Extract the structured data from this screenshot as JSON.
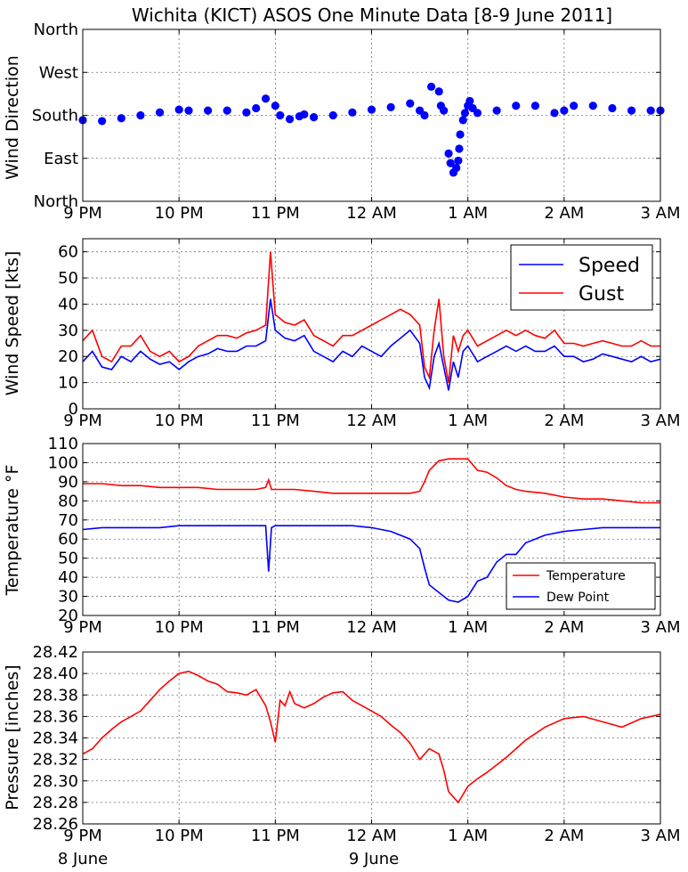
{
  "title": "Wichita (KICT) ASOS One Minute Data [8-9 June 2011]",
  "time_ticks": [
    "9 PM",
    "10 PM",
    "11 PM",
    "12 AM",
    "1 AM",
    "2 AM",
    "3 AM"
  ],
  "date_labels": {
    "first": "8 June",
    "second": "9 June"
  },
  "colors": {
    "speed": "#0000ff",
    "gust": "#ff0000",
    "temperature": "#ff0000",
    "dewpoint": "#0000ff",
    "direction": "#0000ff",
    "pressure": "#ff0000"
  },
  "chart_data": [
    {
      "type": "scatter",
      "ylabel": "Wind Direction",
      "x_unit": "hours after 9 PM (8 June 2011)",
      "xlim": [
        0,
        6
      ],
      "ylim": [
        0,
        360
      ],
      "y_tick_values": [
        0,
        90,
        180,
        270,
        360
      ],
      "y_tick_labels": [
        "North",
        "East",
        "South",
        "West",
        "North"
      ],
      "grid": true,
      "series": [
        {
          "values_x": [
            0.0,
            0.2,
            0.4,
            0.6,
            0.8,
            1.0,
            1.1,
            1.3,
            1.5,
            1.7,
            1.8,
            1.9,
            2.0,
            2.05,
            2.15,
            2.25,
            2.3,
            2.4,
            2.6,
            2.8,
            3.0,
            3.2,
            3.4,
            3.5,
            3.55,
            3.62,
            3.7,
            3.72,
            3.75,
            3.8,
            3.82,
            3.85,
            3.88,
            3.9,
            3.91,
            3.92,
            3.95,
            3.97,
            4.0,
            4.02,
            4.05,
            4.1,
            4.3,
            4.5,
            4.7,
            4.9,
            5.0,
            5.1,
            5.3,
            5.5,
            5.7,
            5.9,
            6.0
          ],
          "values": [
            170,
            168,
            174,
            180,
            186,
            192,
            190,
            190,
            190,
            186,
            195,
            215,
            200,
            180,
            172,
            178,
            182,
            176,
            180,
            186,
            192,
            197,
            205,
            190,
            180,
            240,
            230,
            200,
            190,
            100,
            80,
            60,
            70,
            85,
            110,
            140,
            170,
            185,
            200,
            210,
            195,
            185,
            190,
            200,
            200,
            185,
            190,
            200,
            200,
            195,
            190,
            190,
            190
          ]
        }
      ]
    },
    {
      "type": "line",
      "ylabel": "Wind Speed [kts]",
      "x_unit": "hours after 9 PM (8 June 2011)",
      "xlim": [
        0,
        6
      ],
      "ylim": [
        0,
        65
      ],
      "y_ticks": [
        0,
        10,
        20,
        30,
        40,
        50,
        60
      ],
      "grid": true,
      "legend": "top-right",
      "x": [
        0.0,
        0.1,
        0.2,
        0.3,
        0.4,
        0.5,
        0.6,
        0.7,
        0.8,
        0.9,
        1.0,
        1.1,
        1.2,
        1.3,
        1.4,
        1.5,
        1.6,
        1.7,
        1.8,
        1.9,
        1.95,
        2.0,
        2.1,
        2.2,
        2.3,
        2.4,
        2.5,
        2.6,
        2.7,
        2.8,
        2.9,
        3.0,
        3.1,
        3.2,
        3.3,
        3.4,
        3.5,
        3.55,
        3.6,
        3.65,
        3.7,
        3.75,
        3.8,
        3.85,
        3.9,
        3.95,
        4.0,
        4.1,
        4.2,
        4.3,
        4.4,
        4.5,
        4.6,
        4.7,
        4.8,
        4.9,
        5.0,
        5.1,
        5.2,
        5.3,
        5.4,
        5.5,
        5.6,
        5.7,
        5.8,
        5.9,
        6.0
      ],
      "series": [
        {
          "name": "Speed",
          "values": [
            18,
            22,
            16,
            15,
            20,
            18,
            22,
            19,
            17,
            18,
            15,
            18,
            20,
            21,
            23,
            22,
            22,
            24,
            24,
            26,
            42,
            30,
            27,
            26,
            28,
            22,
            20,
            18,
            22,
            20,
            24,
            22,
            20,
            24,
            27,
            30,
            25,
            12,
            8,
            20,
            25,
            16,
            7,
            18,
            12,
            22,
            24,
            18,
            20,
            22,
            24,
            22,
            24,
            22,
            22,
            24,
            20,
            20,
            18,
            19,
            21,
            20,
            19,
            18,
            20,
            18,
            19
          ]
        },
        {
          "name": "Gust",
          "values": [
            26,
            30,
            20,
            18,
            24,
            24,
            28,
            22,
            20,
            22,
            18,
            20,
            24,
            26,
            28,
            28,
            27,
            29,
            30,
            32,
            60,
            36,
            33,
            32,
            34,
            28,
            26,
            24,
            28,
            28,
            30,
            32,
            34,
            36,
            38,
            36,
            32,
            16,
            12,
            30,
            42,
            20,
            10,
            28,
            22,
            28,
            30,
            24,
            26,
            28,
            30,
            28,
            30,
            28,
            27,
            30,
            25,
            25,
            24,
            25,
            26,
            25,
            24,
            24,
            26,
            24,
            24
          ]
        }
      ]
    },
    {
      "type": "line",
      "ylabel": "Temperature °F",
      "x_unit": "hours after 9 PM (8 June 2011)",
      "xlim": [
        0,
        6
      ],
      "ylim": [
        20,
        110
      ],
      "y_ticks": [
        20,
        30,
        40,
        50,
        60,
        70,
        80,
        90,
        100,
        110
      ],
      "grid": true,
      "legend": "bottom-right",
      "x": [
        0.0,
        0.2,
        0.4,
        0.6,
        0.8,
        1.0,
        1.2,
        1.4,
        1.6,
        1.8,
        1.9,
        1.93,
        1.96,
        2.0,
        2.2,
        2.4,
        2.6,
        2.8,
        3.0,
        3.2,
        3.4,
        3.5,
        3.55,
        3.6,
        3.7,
        3.8,
        3.9,
        4.0,
        4.1,
        4.2,
        4.3,
        4.4,
        4.5,
        4.6,
        4.8,
        5.0,
        5.2,
        5.4,
        5.6,
        5.8,
        6.0
      ],
      "series": [
        {
          "name": "Temperature",
          "values": [
            89,
            89,
            88,
            88,
            87,
            87,
            87,
            86,
            86,
            86,
            87,
            91,
            86,
            86,
            86,
            85,
            84,
            84,
            84,
            84,
            84,
            85,
            90,
            96,
            101,
            102,
            102,
            102,
            96,
            95,
            92,
            88,
            86,
            85,
            84,
            82,
            81,
            81,
            80,
            79,
            79
          ]
        },
        {
          "name": "Dew Point",
          "values": [
            65,
            66,
            66,
            66,
            66,
            67,
            67,
            67,
            67,
            67,
            67,
            43,
            66,
            67,
            67,
            67,
            67,
            67,
            66,
            64,
            60,
            55,
            45,
            36,
            32,
            28,
            27,
            30,
            38,
            40,
            48,
            52,
            52,
            58,
            62,
            64,
            65,
            66,
            66,
            66,
            66
          ]
        }
      ]
    },
    {
      "type": "line",
      "ylabel": "Pressure [inches]",
      "x_unit": "hours after 9 PM (8 June 2011)",
      "xlim": [
        0,
        6
      ],
      "ylim": [
        28.26,
        28.42
      ],
      "y_ticks": [
        28.26,
        28.28,
        28.3,
        28.32,
        28.34,
        28.36,
        28.38,
        28.4,
        28.42
      ],
      "grid": true,
      "x": [
        0.0,
        0.1,
        0.2,
        0.3,
        0.4,
        0.5,
        0.6,
        0.7,
        0.8,
        0.9,
        1.0,
        1.1,
        1.2,
        1.3,
        1.4,
        1.5,
        1.6,
        1.7,
        1.8,
        1.9,
        1.95,
        2.0,
        2.05,
        2.1,
        2.15,
        2.2,
        2.3,
        2.4,
        2.5,
        2.6,
        2.7,
        2.8,
        2.9,
        3.0,
        3.1,
        3.2,
        3.3,
        3.4,
        3.5,
        3.6,
        3.7,
        3.75,
        3.8,
        3.85,
        3.9,
        4.0,
        4.1,
        4.2,
        4.3,
        4.4,
        4.5,
        4.6,
        4.8,
        5.0,
        5.2,
        5.4,
        5.6,
        5.8,
        6.0
      ],
      "series": [
        {
          "name": "Pressure",
          "values": [
            28.325,
            28.33,
            28.34,
            28.348,
            28.355,
            28.36,
            28.365,
            28.375,
            28.385,
            28.393,
            28.4,
            28.402,
            28.398,
            28.393,
            28.39,
            28.383,
            28.382,
            28.38,
            28.385,
            28.37,
            28.355,
            28.336,
            28.375,
            28.37,
            28.383,
            28.372,
            28.368,
            28.372,
            28.378,
            28.382,
            28.383,
            28.375,
            28.37,
            28.365,
            28.36,
            28.352,
            28.345,
            28.335,
            28.32,
            28.33,
            28.325,
            28.31,
            28.29,
            28.285,
            28.28,
            28.295,
            28.302,
            28.308,
            28.315,
            28.322,
            28.33,
            28.338,
            28.35,
            28.358,
            28.36,
            28.355,
            28.35,
            28.358,
            28.362
          ]
        }
      ]
    }
  ]
}
